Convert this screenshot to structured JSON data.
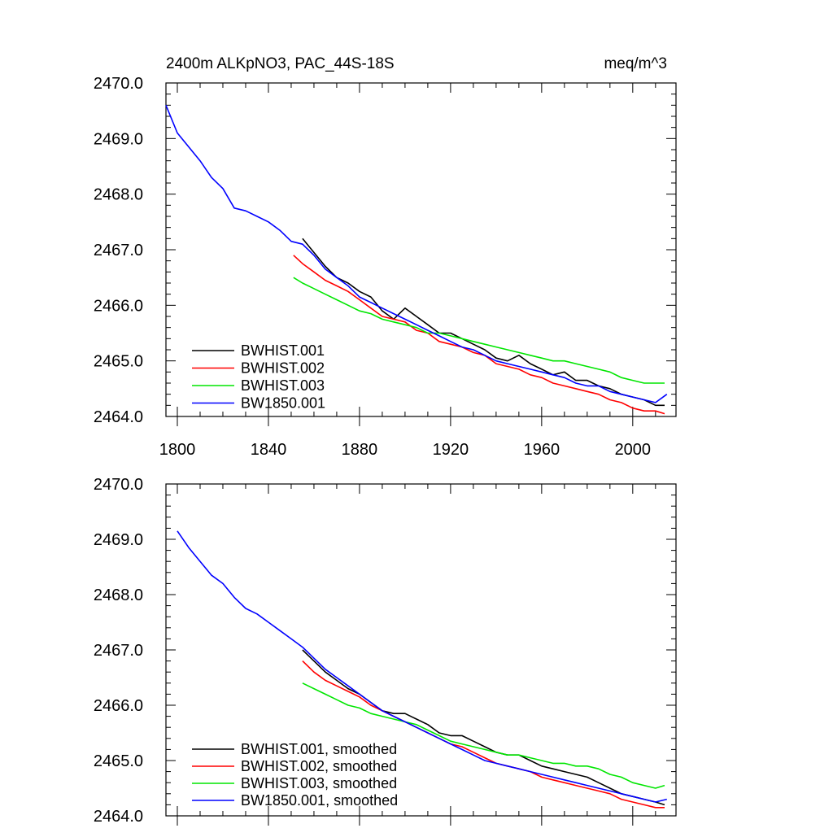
{
  "page_title": "2400m ALKpNO3, PAC_44S-18S",
  "units": "meq/m^3",
  "chart_data": [
    {
      "type": "line",
      "title": "2400m ALKpNO3, PAC_44S-18S",
      "units_label": "meq/m^3",
      "xlim": [
        1795,
        2019
      ],
      "ylim": [
        2464.0,
        2470.0
      ],
      "x_ticks": [
        "1800",
        "1840",
        "1880",
        "1920",
        "1960",
        "2000"
      ],
      "y_ticks": [
        "2464.0",
        "2465.0",
        "2466.0",
        "2467.0",
        "2468.0",
        "2469.0",
        "2470.0"
      ],
      "legend_position": "bottom-left",
      "series": [
        {
          "name": "BWHIST.001",
          "color": "#000000",
          "x": [
            1855,
            1860,
            1865,
            1870,
            1875,
            1880,
            1885,
            1890,
            1895,
            1900,
            1905,
            1910,
            1915,
            1920,
            1925,
            1930,
            1935,
            1940,
            1945,
            1950,
            1955,
            1960,
            1965,
            1970,
            1975,
            1980,
            1985,
            1990,
            1995,
            2000,
            2005,
            2010,
            2014
          ],
          "y": [
            2467.2,
            2466.95,
            2466.7,
            2466.5,
            2466.4,
            2466.25,
            2466.15,
            2465.9,
            2465.75,
            2465.95,
            2465.8,
            2465.65,
            2465.5,
            2465.5,
            2465.4,
            2465.3,
            2465.2,
            2465.05,
            2465.0,
            2465.1,
            2464.95,
            2464.85,
            2464.75,
            2464.8,
            2464.65,
            2464.65,
            2464.55,
            2464.5,
            2464.4,
            2464.35,
            2464.3,
            2464.2,
            2464.2
          ]
        },
        {
          "name": "BWHIST.002",
          "color": "#ff0000",
          "x": [
            1851,
            1855,
            1860,
            1865,
            1870,
            1875,
            1880,
            1885,
            1890,
            1895,
            1900,
            1905,
            1910,
            1915,
            1920,
            1925,
            1930,
            1935,
            1940,
            1945,
            1950,
            1955,
            1960,
            1965,
            1970,
            1975,
            1980,
            1985,
            1990,
            1995,
            2000,
            2005,
            2010,
            2014
          ],
          "y": [
            2466.9,
            2466.75,
            2466.6,
            2466.45,
            2466.35,
            2466.25,
            2466.1,
            2465.95,
            2465.8,
            2465.75,
            2465.7,
            2465.55,
            2465.5,
            2465.35,
            2465.3,
            2465.25,
            2465.15,
            2465.1,
            2464.95,
            2464.9,
            2464.85,
            2464.75,
            2464.7,
            2464.6,
            2464.55,
            2464.5,
            2464.45,
            2464.4,
            2464.3,
            2464.25,
            2464.15,
            2464.1,
            2464.1,
            2464.05
          ]
        },
        {
          "name": "BWHIST.003",
          "color": "#00e600",
          "x": [
            1851,
            1855,
            1860,
            1865,
            1870,
            1875,
            1880,
            1885,
            1890,
            1895,
            1900,
            1905,
            1910,
            1915,
            1920,
            1925,
            1930,
            1935,
            1940,
            1945,
            1950,
            1955,
            1960,
            1965,
            1970,
            1975,
            1980,
            1985,
            1990,
            1995,
            2000,
            2005,
            2010,
            2014
          ],
          "y": [
            2466.5,
            2466.4,
            2466.3,
            2466.2,
            2466.1,
            2466.0,
            2465.9,
            2465.85,
            2465.75,
            2465.7,
            2465.65,
            2465.6,
            2465.5,
            2465.5,
            2465.45,
            2465.4,
            2465.35,
            2465.3,
            2465.25,
            2465.2,
            2465.15,
            2465.1,
            2465.05,
            2465.0,
            2465.0,
            2464.95,
            2464.9,
            2464.85,
            2464.8,
            2464.7,
            2464.65,
            2464.6,
            2464.6,
            2464.6
          ]
        },
        {
          "name": "BW1850.001",
          "color": "#0000ff",
          "x": [
            1795,
            1800,
            1805,
            1810,
            1815,
            1820,
            1825,
            1830,
            1835,
            1840,
            1845,
            1850,
            1855,
            1860,
            1865,
            1870,
            1875,
            1880,
            1885,
            1890,
            1895,
            1900,
            1905,
            1910,
            1915,
            1920,
            1925,
            1930,
            1935,
            1940,
            1945,
            1950,
            1955,
            1960,
            1965,
            1970,
            1975,
            1980,
            1985,
            1990,
            1995,
            2000,
            2005,
            2010,
            2015
          ],
          "y": [
            2469.6,
            2469.1,
            2468.85,
            2468.6,
            2468.3,
            2468.1,
            2467.75,
            2467.7,
            2467.6,
            2467.5,
            2467.35,
            2467.15,
            2467.1,
            2466.9,
            2466.65,
            2466.5,
            2466.35,
            2466.15,
            2466.05,
            2465.95,
            2465.85,
            2465.75,
            2465.65,
            2465.55,
            2465.45,
            2465.35,
            2465.25,
            2465.2,
            2465.1,
            2465.0,
            2464.95,
            2464.9,
            2464.85,
            2464.8,
            2464.75,
            2464.7,
            2464.6,
            2464.55,
            2464.55,
            2464.45,
            2464.4,
            2464.35,
            2464.3,
            2464.25,
            2464.4
          ]
        }
      ]
    },
    {
      "type": "line",
      "xlim": [
        1795,
        2019
      ],
      "ylim": [
        2464.0,
        2470.0
      ],
      "x_ticks": [],
      "y_ticks": [
        "2464.0",
        "2465.0",
        "2466.0",
        "2467.0",
        "2468.0",
        "2469.0",
        "2470.0"
      ],
      "legend_position": "bottom-left",
      "series": [
        {
          "name": "BWHIST.001, smoothed",
          "color": "#000000",
          "x": [
            1855,
            1860,
            1865,
            1870,
            1875,
            1880,
            1885,
            1890,
            1895,
            1900,
            1905,
            1910,
            1915,
            1920,
            1925,
            1930,
            1935,
            1940,
            1945,
            1950,
            1955,
            1960,
            1965,
            1970,
            1975,
            1980,
            1985,
            1990,
            1995,
            2000,
            2005,
            2010,
            2014
          ],
          "y": [
            2467.0,
            2466.8,
            2466.6,
            2466.45,
            2466.3,
            2466.2,
            2466.05,
            2465.9,
            2465.85,
            2465.85,
            2465.75,
            2465.65,
            2465.5,
            2465.45,
            2465.45,
            2465.35,
            2465.25,
            2465.15,
            2465.1,
            2465.1,
            2465.0,
            2464.9,
            2464.85,
            2464.8,
            2464.75,
            2464.7,
            2464.6,
            2464.5,
            2464.4,
            2464.35,
            2464.3,
            2464.25,
            2464.2
          ]
        },
        {
          "name": "BWHIST.002, smoothed",
          "color": "#ff0000",
          "x": [
            1855,
            1860,
            1865,
            1870,
            1875,
            1880,
            1885,
            1890,
            1895,
            1900,
            1905,
            1910,
            1915,
            1920,
            1925,
            1930,
            1935,
            1940,
            1945,
            1950,
            1955,
            1960,
            1965,
            1970,
            1975,
            1980,
            1985,
            1990,
            1995,
            2000,
            2005,
            2010,
            2014
          ],
          "y": [
            2466.8,
            2466.6,
            2466.45,
            2466.35,
            2466.25,
            2466.15,
            2466.0,
            2465.9,
            2465.8,
            2465.7,
            2465.6,
            2465.5,
            2465.4,
            2465.3,
            2465.25,
            2465.15,
            2465.05,
            2464.95,
            2464.9,
            2464.85,
            2464.8,
            2464.7,
            2464.65,
            2464.6,
            2464.55,
            2464.5,
            2464.45,
            2464.4,
            2464.3,
            2464.25,
            2464.2,
            2464.15,
            2464.15
          ]
        },
        {
          "name": "BWHIST.003, smoothed",
          "color": "#00e600",
          "x": [
            1855,
            1860,
            1865,
            1870,
            1875,
            1880,
            1885,
            1890,
            1895,
            1900,
            1905,
            1910,
            1915,
            1920,
            1925,
            1930,
            1935,
            1940,
            1945,
            1950,
            1955,
            1960,
            1965,
            1970,
            1975,
            1980,
            1985,
            1990,
            1995,
            2000,
            2005,
            2010,
            2014
          ],
          "y": [
            2466.4,
            2466.3,
            2466.2,
            2466.1,
            2466.0,
            2465.95,
            2465.85,
            2465.8,
            2465.75,
            2465.7,
            2465.65,
            2465.55,
            2465.45,
            2465.35,
            2465.3,
            2465.25,
            2465.2,
            2465.15,
            2465.1,
            2465.1,
            2465.05,
            2465.0,
            2464.95,
            2464.95,
            2464.9,
            2464.9,
            2464.85,
            2464.75,
            2464.7,
            2464.6,
            2464.55,
            2464.5,
            2464.55
          ]
        },
        {
          "name": "BW1850.001, smoothed",
          "color": "#0000ff",
          "x": [
            1800,
            1805,
            1810,
            1815,
            1820,
            1825,
            1830,
            1835,
            1840,
            1845,
            1850,
            1855,
            1860,
            1865,
            1870,
            1875,
            1880,
            1885,
            1890,
            1895,
            1900,
            1905,
            1910,
            1915,
            1920,
            1925,
            1930,
            1935,
            1940,
            1945,
            1950,
            1955,
            1960,
            1965,
            1970,
            1975,
            1980,
            1985,
            1990,
            1995,
            2000,
            2005,
            2010,
            2015
          ],
          "y": [
            2469.15,
            2468.85,
            2468.6,
            2468.35,
            2468.2,
            2467.95,
            2467.75,
            2467.65,
            2467.5,
            2467.35,
            2467.2,
            2467.05,
            2466.85,
            2466.65,
            2466.5,
            2466.35,
            2466.2,
            2466.05,
            2465.9,
            2465.8,
            2465.7,
            2465.6,
            2465.5,
            2465.4,
            2465.3,
            2465.2,
            2465.1,
            2465.0,
            2464.95,
            2464.9,
            2464.85,
            2464.8,
            2464.75,
            2464.7,
            2464.65,
            2464.6,
            2464.55,
            2464.5,
            2464.45,
            2464.4,
            2464.35,
            2464.3,
            2464.25,
            2464.3
          ]
        }
      ]
    }
  ]
}
